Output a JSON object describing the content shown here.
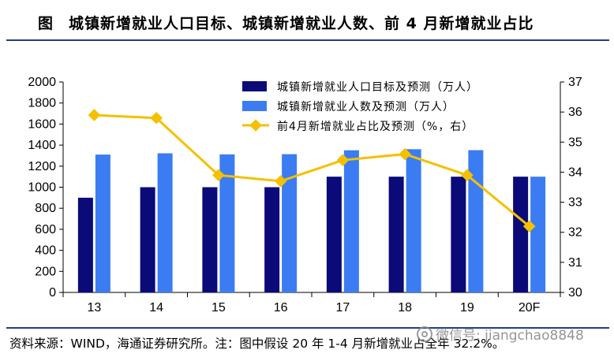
{
  "header": {
    "fig_label": "图",
    "title": "城镇新增就业人口目标、城镇新增就业人数、前 4 月新增就业占比"
  },
  "footer": {
    "source": "资料来源：WIND，海通证券研究所。注：图中假设 20 年 1-4 月新增就业占全年 32.2%。",
    "watermark": "微信号: jiangchao8848"
  },
  "chart_data": {
    "type": "bar",
    "categories": [
      "13",
      "14",
      "15",
      "16",
      "17",
      "18",
      "19",
      "20F"
    ],
    "series": [
      {
        "name": "城镇新增就业人口目标及预测（万人）",
        "kind": "bar",
        "axis": "left",
        "color": "#0a0a78",
        "values": [
          900,
          1000,
          1000,
          1000,
          1100,
          1100,
          1100,
          1100
        ]
      },
      {
        "name": "城镇新增就业人数及预测（万人）",
        "kind": "bar",
        "axis": "left",
        "color": "#3b7cf2",
        "values": [
          1310,
          1322,
          1312,
          1314,
          1351,
          1361,
          1352,
          1100
        ]
      },
      {
        "name": "前4月新增就业占比及预测（%，右）",
        "kind": "line",
        "axis": "right",
        "color": "#f5c000",
        "values": [
          35.9,
          35.8,
          33.9,
          33.7,
          34.4,
          34.6,
          33.9,
          32.2
        ]
      }
    ],
    "ylim": [
      0,
      2000
    ],
    "yticks": [
      0,
      200,
      400,
      600,
      800,
      1000,
      1200,
      1400,
      1600,
      1800,
      2000
    ],
    "y2lim": [
      30,
      37
    ],
    "y2ticks": [
      30,
      31,
      32,
      33,
      34,
      35,
      36,
      37
    ],
    "legend_position": "top-center",
    "grid": false
  }
}
